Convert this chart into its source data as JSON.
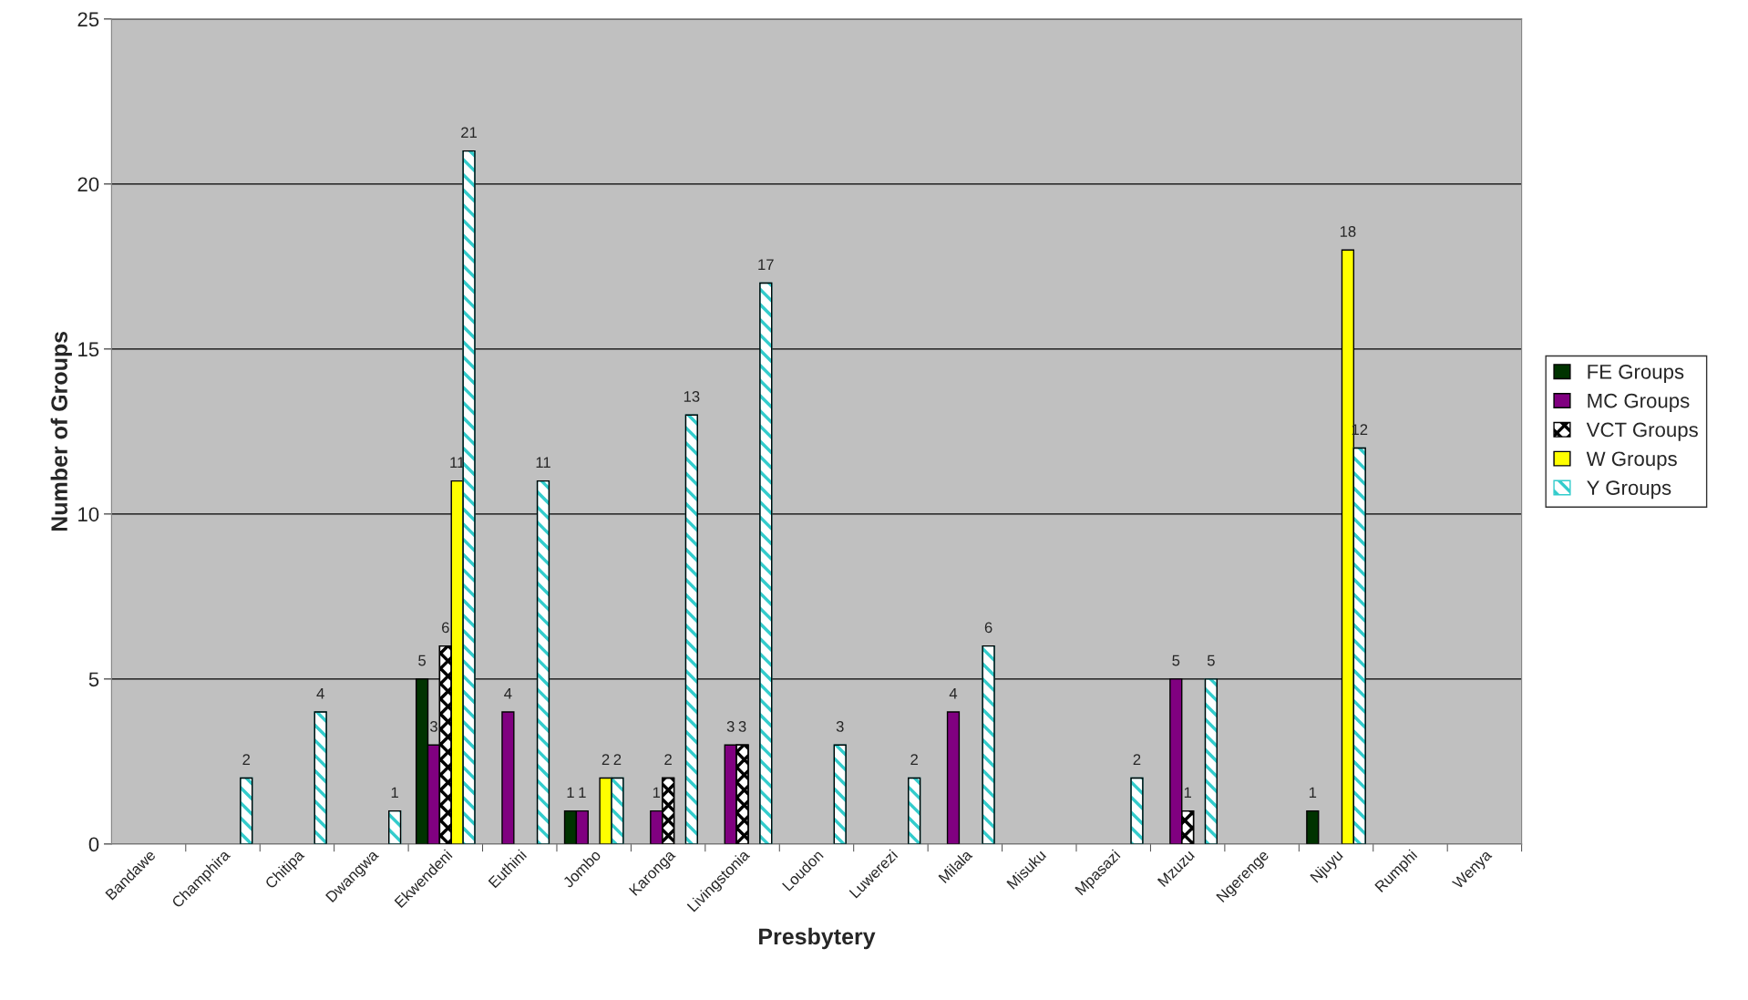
{
  "chart_data": {
    "type": "bar",
    "xlabel": "Presbytery",
    "ylabel": "Number of Groups",
    "categories": [
      "Bandawe",
      "Champhira",
      "Chitipa",
      "Dwangwa",
      "Ekwendeni",
      "Euthini",
      "Jombo",
      "Karonga",
      "Livingstonia",
      "Loudon",
      "Luwerezi",
      "Milala",
      "Misuku",
      "Mpasazi",
      "Mzuzu",
      "Ngerenge",
      "Njuyu",
      "Rumphi",
      "Wenya"
    ],
    "series": [
      {
        "name": "FE Groups",
        "color": "#003300",
        "values": [
          null,
          null,
          null,
          null,
          5,
          null,
          1,
          null,
          null,
          null,
          null,
          null,
          null,
          null,
          null,
          null,
          1,
          null,
          null
        ]
      },
      {
        "name": "MC Groups",
        "color": "#800080",
        "values": [
          null,
          null,
          null,
          null,
          3,
          4,
          1,
          1,
          3,
          null,
          null,
          4,
          null,
          null,
          5,
          null,
          null,
          null,
          null
        ]
      },
      {
        "name": "VCT Groups",
        "color": "#000000",
        "values": [
          null,
          null,
          null,
          null,
          6,
          null,
          null,
          2,
          3,
          null,
          null,
          null,
          null,
          null,
          1,
          null,
          null,
          null,
          null
        ]
      },
      {
        "name": "W Groups",
        "color": "#ffff00",
        "values": [
          null,
          null,
          null,
          null,
          11,
          null,
          2,
          null,
          null,
          null,
          null,
          null,
          null,
          null,
          null,
          null,
          18,
          null,
          null
        ]
      },
      {
        "name": "Y Groups",
        "color": "#33cccc",
        "values": [
          null,
          2,
          4,
          1,
          21,
          11,
          2,
          13,
          17,
          3,
          2,
          6,
          null,
          2,
          5,
          null,
          12,
          null,
          null
        ]
      }
    ],
    "ylim": [
      0,
      25
    ],
    "yticks": [
      0,
      5,
      10,
      15,
      20,
      25
    ],
    "grid": "y",
    "legend": "right",
    "data_labels": true
  }
}
